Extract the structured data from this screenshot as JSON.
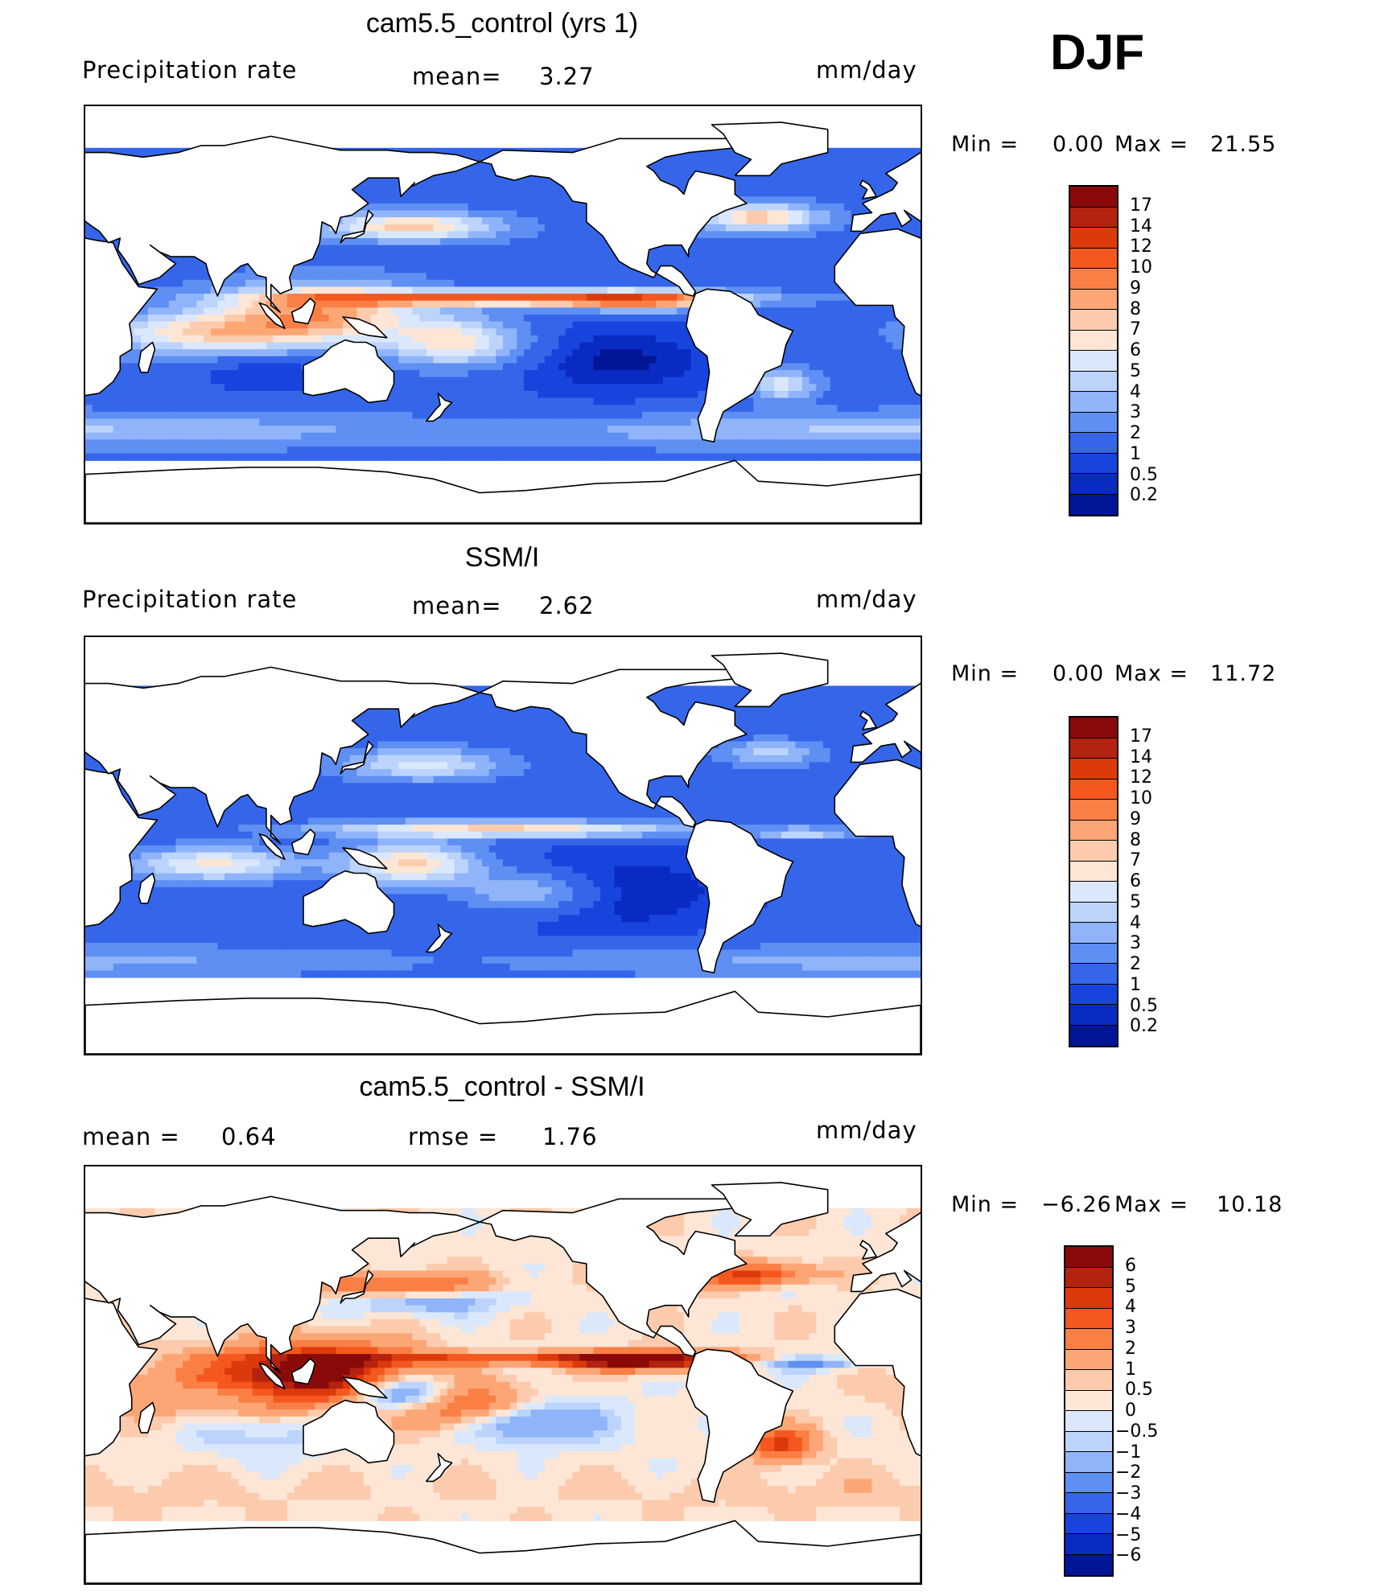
{
  "season": "DJF",
  "chart_data": [
    {
      "type": "heatmap",
      "title": "cam5.5_control (yrs 1)",
      "variable": "Precipitation rate",
      "mean_label": "mean=",
      "mean_value": "3.27",
      "units": "mm/day",
      "min_label": "Min =",
      "min_value": "0.00",
      "max_label": "Max =",
      "max_value": "21.55",
      "projection": "global cylindrical equidistant, Pacific-centered",
      "colorbar_levels": [
        "17",
        "14",
        "12",
        "10",
        "9",
        "8",
        "7",
        "6",
        "5",
        "4",
        "3",
        "2",
        "1",
        "0.5",
        "0.2"
      ],
      "colorbar_colors": [
        "#8a0a0a",
        "#b4230f",
        "#dd3a0c",
        "#f4581f",
        "#fa7f45",
        "#fca676",
        "#fccbad",
        "#fde6d6",
        "#dbe8fb",
        "#bcd4fc",
        "#8fb4fa",
        "#5f8ff3",
        "#3566ea",
        "#1844de",
        "#0a2bc2",
        "#001696"
      ]
    },
    {
      "type": "heatmap",
      "title": "SSM/I",
      "variable": "Precipitation rate",
      "mean_label": "mean=",
      "mean_value": "2.62",
      "units": "mm/day",
      "min_label": "Min =",
      "min_value": "0.00",
      "max_label": "Max =",
      "max_value": "11.72",
      "projection": "global cylindrical equidistant, Pacific-centered",
      "colorbar_levels": [
        "17",
        "14",
        "12",
        "10",
        "9",
        "8",
        "7",
        "6",
        "5",
        "4",
        "3",
        "2",
        "1",
        "0.5",
        "0.2"
      ],
      "colorbar_colors": [
        "#8a0a0a",
        "#b4230f",
        "#dd3a0c",
        "#f4581f",
        "#fa7f45",
        "#fca676",
        "#fccbad",
        "#fde6d6",
        "#dbe8fb",
        "#bcd4fc",
        "#8fb4fa",
        "#5f8ff3",
        "#3566ea",
        "#1844de",
        "#0a2bc2",
        "#001696"
      ]
    },
    {
      "type": "heatmap",
      "title": "cam5.5_control - SSM/I",
      "mean_label": "mean =",
      "mean_value": "0.64",
      "rmse_label": "rmse =",
      "rmse_value": "1.76",
      "units": "mm/day",
      "min_label": "Min =",
      "min_value": "−6.26",
      "max_label": "Max =",
      "max_value": "10.18",
      "projection": "global cylindrical equidistant, Pacific-centered",
      "colorbar_levels": [
        "6",
        "5",
        "4",
        "3",
        "2",
        "1",
        "0.5",
        "0",
        "−0.5",
        "−1",
        "−2",
        "−3",
        "−4",
        "−5",
        "−6"
      ],
      "colorbar_colors": [
        "#8a0a0a",
        "#b4230f",
        "#dd3a0c",
        "#f4581f",
        "#fa7f45",
        "#fca676",
        "#fccbad",
        "#fde6d6",
        "#dbe8fb",
        "#bcd4fc",
        "#8fb4fa",
        "#5f8ff3",
        "#3566ea",
        "#1844de",
        "#0a2bc2",
        "#001696"
      ]
    }
  ]
}
